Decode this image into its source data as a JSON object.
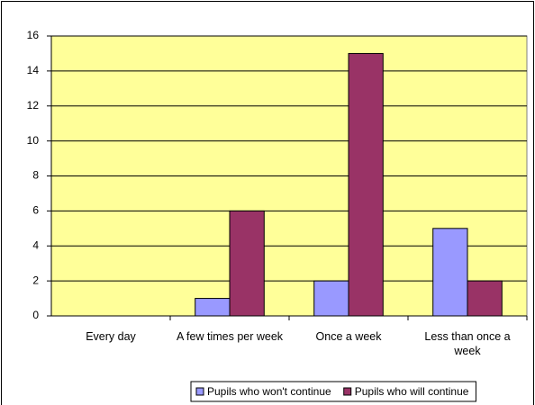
{
  "chart_data": {
    "type": "bar",
    "categories": [
      "Every day",
      "A few times per week",
      "Once a week",
      "Less than once a week"
    ],
    "series": [
      {
        "name": "Pupils who won't continue",
        "color": "#9999ff",
        "values": [
          0,
          1,
          2,
          5
        ]
      },
      {
        "name": "Pupils who will continue",
        "color": "#993366",
        "values": [
          0,
          6,
          15,
          2
        ]
      }
    ],
    "ylim": [
      0,
      16
    ],
    "yticks": [
      0,
      2,
      4,
      6,
      8,
      10,
      12,
      14,
      16
    ],
    "grid": true,
    "plot_background": "#ffff99",
    "legend": "bottom"
  }
}
